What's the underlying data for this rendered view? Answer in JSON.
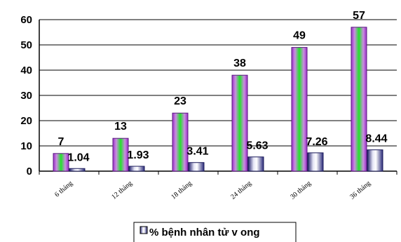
{
  "chart_data": {
    "type": "bar",
    "categories": [
      "6 tháng",
      "12 tháng",
      "18 tháng",
      "24 tháng",
      "30 tháng",
      "36 tháng"
    ],
    "series": [
      {
        "values": [
          7,
          13,
          23,
          38,
          49,
          57
        ],
        "color": "#9b30c8"
      },
      {
        "name": "% bệnh nhân tử v ong",
        "values": [
          1.04,
          1.93,
          3.41,
          5.63,
          7.26,
          8.44
        ],
        "color": "#3a3a8c"
      }
    ],
    "data_labels": [
      [
        "7",
        "13",
        "23",
        "38",
        "49",
        "57"
      ],
      [
        "1.04",
        "1.93",
        "3.41",
        "5.63",
        "7.26",
        "8.44"
      ]
    ],
    "yticks": [
      "0",
      "10",
      "20",
      "30",
      "40",
      "50",
      "60"
    ],
    "ylim": [
      0,
      60
    ],
    "grid": true,
    "legend_position": "bottom"
  }
}
